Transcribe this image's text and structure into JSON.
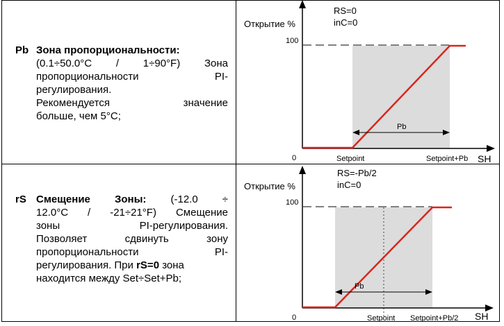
{
  "rows": [
    {
      "code": "Pb",
      "title": "Зона пропорциональности:",
      "lines": [
        "(0.1÷50.0°C / 1÷90°F) Зона",
        "пропорциональности PI-",
        "регулирования.",
        "Рекомендуется значение",
        "больше, чем 5°C;"
      ],
      "diagram": {
        "ylabel": "Открытие %",
        "xlabel": "SH",
        "params": [
          "RS=0",
          "inC=0"
        ],
        "y_max_label": "100",
        "origin_label": "0",
        "band_label": "Pb",
        "x_labels": [
          "Setpoint",
          "Setpoint+Pb"
        ]
      }
    },
    {
      "code": "rS",
      "title": "Смещение Зоны:",
      "title_rest": "(-12.0 ÷",
      "lines": [
        "12.0°C / -21÷21°F) Смещение",
        "зоны PI-регулирования.",
        "Позволяет сдвинуть зону",
        "пропорциональности PI-",
        "регулирования. При",
        "находится между Set÷Set+Pb;"
      ],
      "bold_inline": "rS=0",
      "after_bold": "зона",
      "diagram": {
        "ylabel": "Открытие %",
        "xlabel": "SH",
        "params": [
          "RS=-Pb/2",
          "inC=0"
        ],
        "y_max_label": "100",
        "origin_label": "0",
        "band_label": "Pb",
        "x_labels": [
          "Setpoint",
          "Setpoint+Pb/2"
        ]
      }
    }
  ],
  "colors": {
    "response_line": "#d9251c",
    "zone_fill": "#dcdcdc",
    "axis": "#000000"
  }
}
